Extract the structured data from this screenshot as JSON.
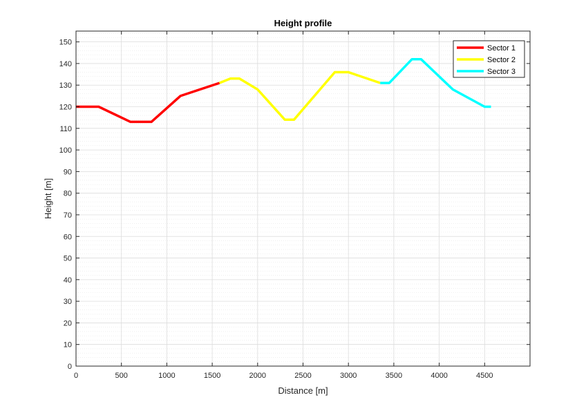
{
  "chart_data": {
    "type": "line",
    "title": "Height profile",
    "xlabel": "Distance [m]",
    "ylabel": "Height [m]",
    "xlim": [
      0,
      5000
    ],
    "ylim": [
      0,
      155
    ],
    "xticks": [
      0,
      500,
      1000,
      1500,
      2000,
      2500,
      3000,
      3500,
      4000,
      4500
    ],
    "yticks": [
      0,
      10,
      20,
      30,
      40,
      50,
      60,
      70,
      80,
      90,
      100,
      110,
      120,
      130,
      140,
      150
    ],
    "grid": true,
    "minor_grid_y": true,
    "legend_position": "top-right",
    "series": [
      {
        "name": "Sector 1",
        "color": "#ff0000",
        "x": [
          0,
          250,
          600,
          830,
          1150,
          1580
        ],
        "y": [
          120,
          120,
          113,
          113,
          125,
          131
        ]
      },
      {
        "name": "Sector 2",
        "color": "#ffff00",
        "x": [
          1580,
          1700,
          1800,
          2000,
          2300,
          2400,
          2850,
          3000,
          3350
        ],
        "y": [
          131,
          133,
          133,
          128,
          114,
          114,
          136,
          136,
          131
        ]
      },
      {
        "name": "Sector 3",
        "color": "#00ffff",
        "x": [
          3350,
          3450,
          3700,
          3800,
          4150,
          4500,
          4570
        ],
        "y": [
          131,
          131,
          142,
          142,
          128,
          120,
          120
        ]
      }
    ]
  }
}
